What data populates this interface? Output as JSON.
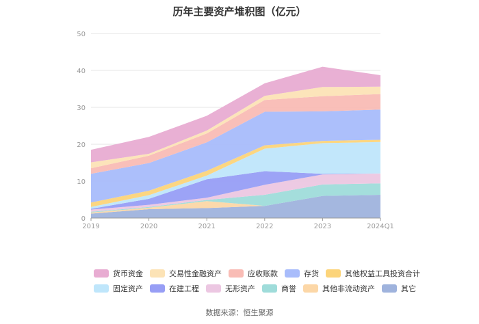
{
  "chart_data": {
    "type": "area",
    "stacked": true,
    "title": "历年主要资产堆积图（亿元）",
    "source": "数据来源：恒生聚源",
    "categories": [
      "2019",
      "2020",
      "2021",
      "2022",
      "2023",
      "2024Q1"
    ],
    "ylim": [
      0,
      50
    ],
    "yticks": [
      "0",
      "10",
      "20",
      "30",
      "40",
      "50"
    ],
    "grid": true,
    "legend_position": "bottom",
    "series": [
      {
        "name": "其它",
        "color": "#9fb3dd",
        "values": [
          1.2,
          2.4,
          2.7,
          3.3,
          6.0,
          6.3
        ]
      },
      {
        "name": "其他非流动资产",
        "color": "#fcd7a7",
        "values": [
          0.3,
          0.4,
          1.9,
          0.0,
          0.0,
          0.0
        ]
      },
      {
        "name": "商誉",
        "color": "#9fdcda",
        "values": [
          0.2,
          0.2,
          0.3,
          3.0,
          3.1,
          3.1
        ]
      },
      {
        "name": "无形资产",
        "color": "#ecc7e2",
        "values": [
          0.6,
          0.6,
          0.6,
          2.7,
          2.7,
          2.7
        ]
      },
      {
        "name": "在建工程",
        "color": "#979ef5",
        "values": [
          0.2,
          1.6,
          5.0,
          3.7,
          0.2,
          0.0
        ]
      },
      {
        "name": "固定资产",
        "color": "#bfe6fb",
        "values": [
          0.5,
          1.0,
          1.0,
          6.1,
          8.3,
          8.5
        ]
      },
      {
        "name": "其他权益工具投资合计",
        "color": "#fcd47a",
        "values": [
          1.2,
          1.2,
          1.3,
          0.9,
          0.6,
          0.6
        ]
      },
      {
        "name": "存货",
        "color": "#a8bcfb",
        "values": [
          7.8,
          7.5,
          7.7,
          9.1,
          8.0,
          8.2
        ]
      },
      {
        "name": "应收账款",
        "color": "#f9bcb5",
        "values": [
          1.5,
          2.0,
          2.4,
          3.2,
          4.1,
          4.2
        ]
      },
      {
        "name": "交易性金融资产",
        "color": "#fce3b6",
        "values": [
          1.6,
          0.5,
          0.8,
          1.1,
          2.5,
          2.0
        ]
      },
      {
        "name": "货币资金",
        "color": "#e8acd2",
        "values": [
          3.4,
          4.6,
          4.0,
          3.4,
          5.5,
          3.1
        ]
      }
    ],
    "legend_rows": [
      [
        "货币资金",
        "交易性金融资产",
        "应收账款",
        "存货",
        "其他权益工具投资合计"
      ],
      [
        "固定资产",
        "在建工程",
        "无形资产",
        "商誉",
        "其他非流动资产",
        "其它"
      ]
    ]
  }
}
